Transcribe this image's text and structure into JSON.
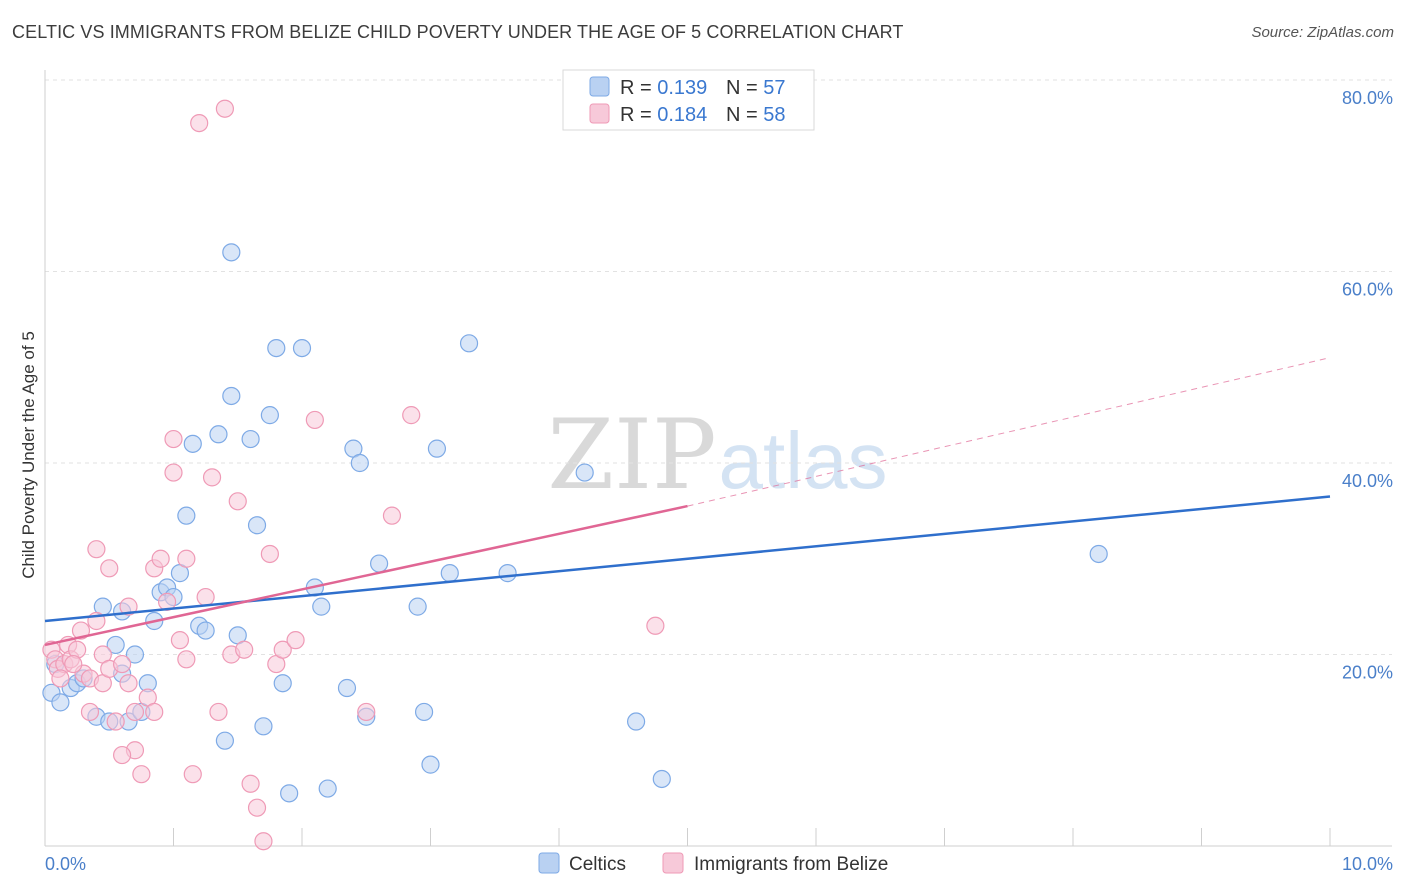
{
  "title": "CELTIC VS IMMIGRANTS FROM BELIZE CHILD POVERTY UNDER THE AGE OF 5 CORRELATION CHART",
  "source": "Source: ZipAtlas.com",
  "watermark": {
    "zip": "ZIP",
    "atlas": "atlas"
  },
  "chart_data": {
    "type": "scatter",
    "title": "CELTIC VS IMMIGRANTS FROM BELIZE CHILD POVERTY UNDER THE AGE OF 5 CORRELATION CHART",
    "xlabel": "",
    "ylabel": "Child Poverty Under the Age of 5",
    "xlim": [
      0,
      10
    ],
    "ylim": [
      0,
      80
    ],
    "x_tick_labels": {
      "min": "0.0%",
      "max": "10.0%"
    },
    "y_ticks": [
      20,
      40,
      60,
      80
    ],
    "y_tick_labels": [
      "20.0%",
      "40.0%",
      "60.0%",
      "80.0%"
    ],
    "grid": true,
    "legend": {
      "position": "top-center",
      "entries": [
        {
          "r_label": "R = ",
          "r_value": "0.139",
          "n_label": "N = ",
          "n_value": "57"
        },
        {
          "r_label": "R = ",
          "r_value": "0.184",
          "n_label": "N = ",
          "n_value": "58"
        }
      ]
    },
    "series": [
      {
        "name": "Celtics",
        "color": "#7eaae6",
        "fill": "#b9d1f2",
        "line_color": "#2f6fcc",
        "trend": {
          "x": [
            0,
            10
          ],
          "y": [
            23.5,
            36.5
          ],
          "dashed_from": null
        },
        "points": [
          [
            0.05,
            16
          ],
          [
            0.12,
            15
          ],
          [
            0.2,
            16.5
          ],
          [
            0.25,
            17
          ],
          [
            0.3,
            17.5
          ],
          [
            0.4,
            13.5
          ],
          [
            0.5,
            13
          ],
          [
            0.45,
            25
          ],
          [
            0.55,
            21
          ],
          [
            0.6,
            24.5
          ],
          [
            0.6,
            18
          ],
          [
            0.65,
            13
          ],
          [
            0.7,
            20
          ],
          [
            0.75,
            14
          ],
          [
            0.8,
            17
          ],
          [
            0.85,
            23.5
          ],
          [
            0.9,
            26.5
          ],
          [
            0.95,
            27
          ],
          [
            1.0,
            26
          ],
          [
            1.05,
            28.5
          ],
          [
            1.1,
            34.5
          ],
          [
            1.15,
            42
          ],
          [
            1.2,
            23
          ],
          [
            1.25,
            22.5
          ],
          [
            1.35,
            43
          ],
          [
            1.4,
            11
          ],
          [
            1.45,
            62
          ],
          [
            1.45,
            47
          ],
          [
            1.5,
            22
          ],
          [
            1.6,
            42.5
          ],
          [
            1.65,
            33.5
          ],
          [
            1.7,
            12.5
          ],
          [
            1.75,
            45
          ],
          [
            1.8,
            52
          ],
          [
            1.85,
            17
          ],
          [
            1.9,
            5.5
          ],
          [
            2.0,
            52
          ],
          [
            2.1,
            27
          ],
          [
            2.15,
            25
          ],
          [
            2.2,
            6
          ],
          [
            2.35,
            16.5
          ],
          [
            2.4,
            41.5
          ],
          [
            2.45,
            40
          ],
          [
            2.5,
            13.5
          ],
          [
            2.6,
            29.5
          ],
          [
            2.9,
            25
          ],
          [
            2.95,
            14
          ],
          [
            3.0,
            8.5
          ],
          [
            3.05,
            41.5
          ],
          [
            3.15,
            28.5
          ],
          [
            3.3,
            52.5
          ],
          [
            3.6,
            28.5
          ],
          [
            4.2,
            39
          ],
          [
            4.6,
            13
          ],
          [
            4.8,
            7
          ],
          [
            8.2,
            30.5
          ],
          [
            0.08,
            19
          ]
        ]
      },
      {
        "name": "Immigrants from Belize",
        "color": "#ef9ab6",
        "fill": "#f7c9d9",
        "line_color": "#e06694",
        "trend": {
          "x": [
            0,
            5
          ],
          "y": [
            21,
            35.5
          ],
          "dashed_to": [
            10,
            51
          ]
        },
        "points": [
          [
            0.05,
            20.5
          ],
          [
            0.08,
            19.5
          ],
          [
            0.1,
            18.5
          ],
          [
            0.15,
            19
          ],
          [
            0.18,
            21
          ],
          [
            0.2,
            19.5
          ],
          [
            0.25,
            20.5
          ],
          [
            0.3,
            18
          ],
          [
            0.35,
            14
          ],
          [
            0.35,
            17.5
          ],
          [
            0.4,
            23.5
          ],
          [
            0.4,
            31
          ],
          [
            0.45,
            17
          ],
          [
            0.45,
            20
          ],
          [
            0.5,
            18.5
          ],
          [
            0.5,
            29
          ],
          [
            0.55,
            13
          ],
          [
            0.6,
            19
          ],
          [
            0.65,
            25
          ],
          [
            0.65,
            17
          ],
          [
            0.7,
            14
          ],
          [
            0.7,
            10
          ],
          [
            0.75,
            7.5
          ],
          [
            0.8,
            15.5
          ],
          [
            0.85,
            14
          ],
          [
            0.85,
            29
          ],
          [
            0.9,
            30
          ],
          [
            0.95,
            25.5
          ],
          [
            1.0,
            39
          ],
          [
            1.0,
            42.5
          ],
          [
            1.05,
            21.5
          ],
          [
            1.1,
            30
          ],
          [
            1.1,
            19.5
          ],
          [
            1.15,
            7.5
          ],
          [
            1.2,
            75.5
          ],
          [
            1.25,
            26
          ],
          [
            1.3,
            38.5
          ],
          [
            1.35,
            14
          ],
          [
            1.4,
            77
          ],
          [
            1.45,
            20
          ],
          [
            1.5,
            36
          ],
          [
            1.55,
            20.5
          ],
          [
            1.6,
            6.5
          ],
          [
            1.65,
            4
          ],
          [
            1.7,
            0.5
          ],
          [
            1.75,
            30.5
          ],
          [
            1.8,
            19
          ],
          [
            1.85,
            20.5
          ],
          [
            1.95,
            21.5
          ],
          [
            2.1,
            44.5
          ],
          [
            2.5,
            14
          ],
          [
            2.7,
            34.5
          ],
          [
            2.85,
            45
          ],
          [
            4.75,
            23
          ],
          [
            0.12,
            17.5
          ],
          [
            0.28,
            22.5
          ],
          [
            0.6,
            9.5
          ],
          [
            0.22,
            19
          ]
        ]
      }
    ]
  },
  "bottom_legend": [
    {
      "label": "Celtics"
    },
    {
      "label": "Immigrants from Belize"
    }
  ]
}
